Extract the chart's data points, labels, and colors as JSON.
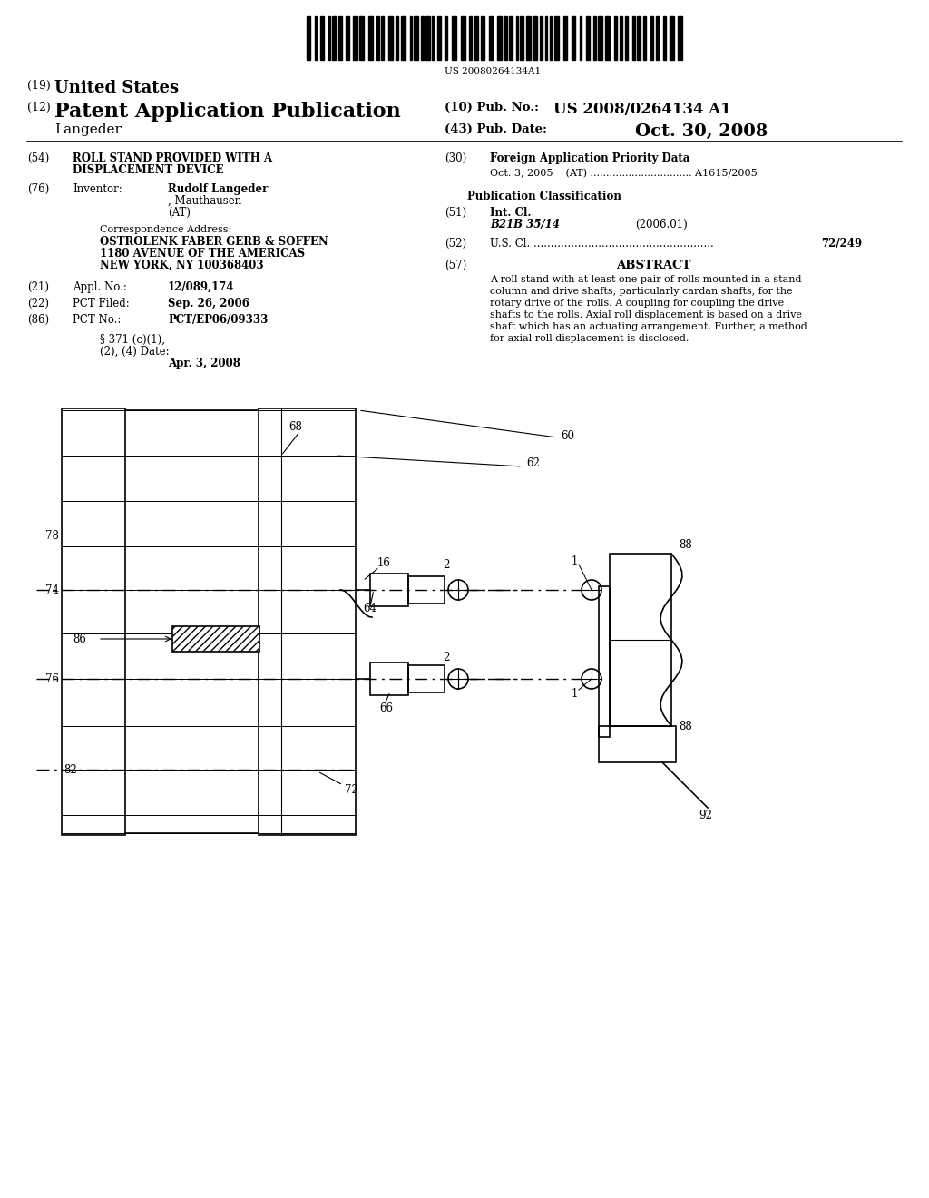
{
  "bg_color": "#ffffff",
  "barcode_text": "US 20080264134A1",
  "title19": "(19) United States",
  "title12": "(12) Patent Application Publication",
  "pub_no_label": "(10) Pub. No.:",
  "pub_no_value": "US 2008/0264134 A1",
  "inventor_name": "Langeder",
  "pub_date_label": "(43) Pub. Date:",
  "pub_date_value": "Oct. 30, 2008",
  "field54_label": "(54)",
  "field54_text1": "ROLL STAND PROVIDED WITH A",
  "field54_text2": "DISPLACEMENT DEVICE",
  "field76_label": "(76)",
  "field76_title": "Inventor:",
  "field76_name": "Rudolf Langeder",
  "field76_city": ", Mauthausen",
  "field76_country": "(AT)",
  "corr_address_title": "Correspondence Address:",
  "corr_address_line1": "OSTROLENK FABER GERB & SOFFEN",
  "corr_address_line2": "1180 AVENUE OF THE AMERICAS",
  "corr_address_line3": "NEW YORK, NY 100368403",
  "field21_label": "(21)",
  "field21_title": "Appl. No.:",
  "field21_value": "12/089,174",
  "field22_label": "(22)",
  "field22_title": "PCT Filed:",
  "field22_value": "Sep. 26, 2006",
  "field86_label": "(86)",
  "field86_title": "PCT No.:",
  "field86_value": "PCT/EP06/09333",
  "field371_line1": "§ 371 (c)(1),",
  "field371_line2": "(2), (4) Date:",
  "field371_value": "Apr. 3, 2008",
  "field30_label": "(30)",
  "field30_title": "Foreign Application Priority Data",
  "field30_data": "Oct. 3, 2005    (AT) ................................ A1615/2005",
  "pub_class_title": "Publication Classification",
  "field51_label": "(51)",
  "field51_title": "Int. Cl.",
  "field51_class": "B21B 35/14",
  "field51_year": "(2006.01)",
  "field52_label": "(52)",
  "field52_title": "U.S. Cl. .....................................................",
  "field52_value": "72/249",
  "field57_label": "(57)",
  "field57_title": "ABSTRACT",
  "abstract_lines": [
    "A roll stand with at least one pair of rolls mounted in a stand",
    "column and drive shafts, particularly cardan shafts, for the",
    "rotary drive of the rolls. A coupling for coupling the drive",
    "shafts to the rolls. Axial roll displacement is based on a drive",
    "shaft which has an actuating arrangement. Further, a method",
    "for axial roll displacement is disclosed."
  ]
}
